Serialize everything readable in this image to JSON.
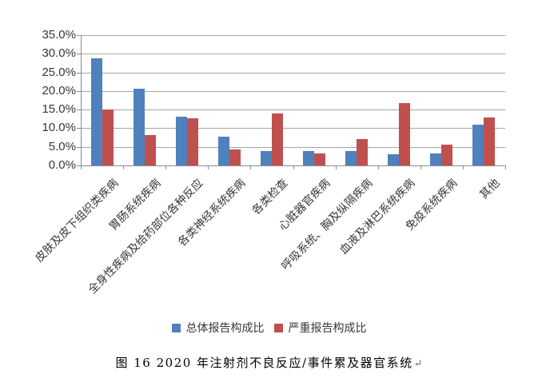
{
  "figure": {
    "caption": "图 16  2020 年注射剂不良反应/事件累及器官系统",
    "caption_return_mark": "↵"
  },
  "colors": {
    "series_total": "#4F81BD",
    "series_serious": "#C0504D",
    "gridline": "#A6A6A6",
    "axis_text": "#373737"
  },
  "chart_data": {
    "type": "bar",
    "title": "",
    "xlabel": "",
    "ylabel": "",
    "categories": [
      "皮肤及皮下组织类疾病",
      "胃肠系统疾病",
      "全身性疾病及给药部位各种反应",
      "各类神经系统疾病",
      "各类检查",
      "心脏器官疾病",
      "呼吸系统、胸及纵隔疾病",
      "血液及淋巴系统疾病",
      "免疫系统疾病",
      "其他"
    ],
    "series": [
      {
        "name": "总体报告构成比",
        "color": "#4F81BD",
        "values": [
          28.8,
          20.6,
          13.0,
          7.8,
          3.9,
          3.8,
          3.9,
          3.0,
          3.2,
          11.0
        ]
      },
      {
        "name": "严重报告构成比",
        "color": "#C0504D",
        "values": [
          15.0,
          8.2,
          12.7,
          4.3,
          14.0,
          3.2,
          7.0,
          16.8,
          5.6,
          12.8
        ]
      }
    ],
    "ylim": [
      0,
      35
    ],
    "y_tick_step": 5,
    "y_ticks": [
      "0.0%",
      "5.0%",
      "10.0%",
      "15.0%",
      "20.0%",
      "25.0%",
      "30.0%",
      "35.0%"
    ],
    "grid": true,
    "legend_position": "bottom",
    "x_tick_label_rotation": 45
  }
}
